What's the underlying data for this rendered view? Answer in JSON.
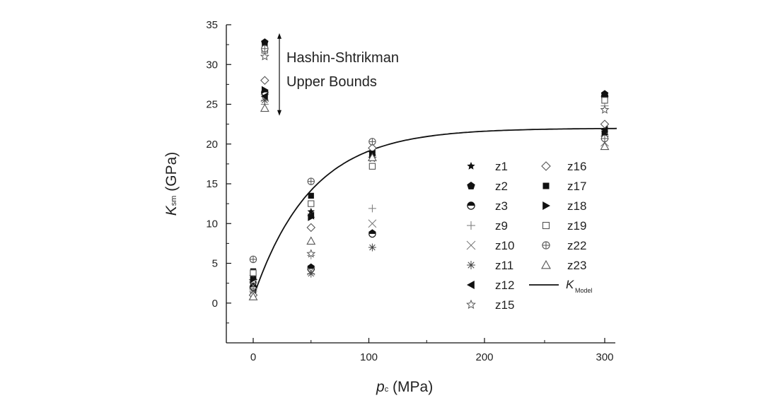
{
  "chart_data": {
    "type": "scatter",
    "xlabel_main": "p",
    "xlabel_sub": "c",
    "xlabel_unit": "(MPa)",
    "ylabel_main": "K",
    "ylabel_sub": "sm",
    "ylabel_unit": "(GPa)",
    "x_scale": "broken",
    "x_ticks": [
      0,
      100,
      200,
      300
    ],
    "y_ticks": [
      0,
      5,
      10,
      15,
      20,
      25,
      30,
      35
    ],
    "xlim": [
      -20,
      310
    ],
    "ylim": [
      -5,
      35
    ],
    "grid": false,
    "legend_placement": "lower-right",
    "annotation": {
      "line1": "Hashin-Shtrikman",
      "line2": "Upper Bounds",
      "y_range": [
        24,
        33.5
      ]
    },
    "series": [
      {
        "name": "z1",
        "marker": "star-filled",
        "points": [
          [
            0,
            1.2
          ],
          [
            10,
            26.3
          ],
          [
            50,
            11.5
          ],
          [
            103,
            18.5
          ],
          [
            300,
            21.5
          ]
        ]
      },
      {
        "name": "z2",
        "marker": "pentagon-filled",
        "points": [
          [
            0,
            2.5
          ],
          [
            10,
            32.8
          ],
          [
            50,
            4.5
          ],
          [
            103,
            8.8
          ],
          [
            300,
            26.3
          ]
        ]
      },
      {
        "name": "z3",
        "marker": "half-circle",
        "points": [
          [
            0,
            2.0
          ],
          [
            10,
            26.5
          ],
          [
            50,
            4.3
          ],
          [
            103,
            8.7
          ],
          [
            300,
            26.0
          ]
        ]
      },
      {
        "name": "z9",
        "marker": "plus",
        "points": [
          [
            0,
            1.8
          ],
          [
            10,
            25.0
          ],
          [
            50,
            6.0
          ],
          [
            103,
            11.9
          ],
          [
            300,
            24.8
          ]
        ]
      },
      {
        "name": "z10",
        "marker": "x",
        "points": [
          [
            0,
            2.2
          ],
          [
            10,
            25.8
          ],
          [
            50,
            4.0
          ],
          [
            103,
            10.0
          ],
          [
            300,
            20.2
          ]
        ]
      },
      {
        "name": "z11",
        "marker": "asterisk",
        "points": [
          [
            0,
            1.5
          ],
          [
            10,
            25.5
          ],
          [
            50,
            3.7
          ],
          [
            103,
            7.0
          ],
          [
            300,
            21.0
          ]
        ]
      },
      {
        "name": "z12",
        "marker": "tri-left",
        "points": [
          [
            0,
            3.5
          ],
          [
            10,
            26.0
          ],
          [
            50,
            11.0
          ],
          [
            103,
            19.0
          ],
          [
            300,
            21.8
          ]
        ]
      },
      {
        "name": "z15",
        "marker": "star-open",
        "points": [
          [
            0,
            2.8
          ],
          [
            10,
            31.0
          ],
          [
            50,
            6.2
          ],
          [
            103,
            18.2
          ],
          [
            300,
            24.3
          ]
        ]
      },
      {
        "name": "z16",
        "marker": "diamond-open",
        "points": [
          [
            0,
            1.0
          ],
          [
            10,
            28.0
          ],
          [
            50,
            9.5
          ],
          [
            103,
            19.5
          ],
          [
            300,
            22.5
          ]
        ]
      },
      {
        "name": "z17",
        "marker": "square-filled",
        "points": [
          [
            0,
            4.0
          ],
          [
            10,
            32.5
          ],
          [
            50,
            13.5
          ],
          [
            103,
            18.8
          ],
          [
            300,
            26.0
          ]
        ]
      },
      {
        "name": "z18",
        "marker": "tri-right",
        "points": [
          [
            0,
            3.0
          ],
          [
            10,
            26.8
          ],
          [
            50,
            10.8
          ],
          [
            103,
            18.6
          ],
          [
            300,
            21.2
          ]
        ]
      },
      {
        "name": "z19",
        "marker": "square-open",
        "points": [
          [
            0,
            3.8
          ],
          [
            10,
            31.8
          ],
          [
            50,
            12.5
          ],
          [
            103,
            17.2
          ],
          [
            300,
            25.5
          ]
        ]
      },
      {
        "name": "z22",
        "marker": "circle-plus",
        "points": [
          [
            0,
            5.5
          ],
          [
            10,
            32.0
          ],
          [
            50,
            15.3
          ],
          [
            103,
            20.3
          ],
          [
            300,
            20.7
          ]
        ]
      },
      {
        "name": "z23",
        "marker": "tri-up-open",
        "points": [
          [
            0,
            0.8
          ],
          [
            10,
            24.5
          ],
          [
            50,
            7.8
          ],
          [
            103,
            18.3
          ],
          [
            300,
            19.7
          ]
        ]
      }
    ],
    "fit_curve": {
      "name_main": "K",
      "name_sub": "Model",
      "form": "Kmax*(1-exp(-p/p0))",
      "Kmax": 22.0,
      "p0": 50,
      "K0": 0.7
    }
  }
}
